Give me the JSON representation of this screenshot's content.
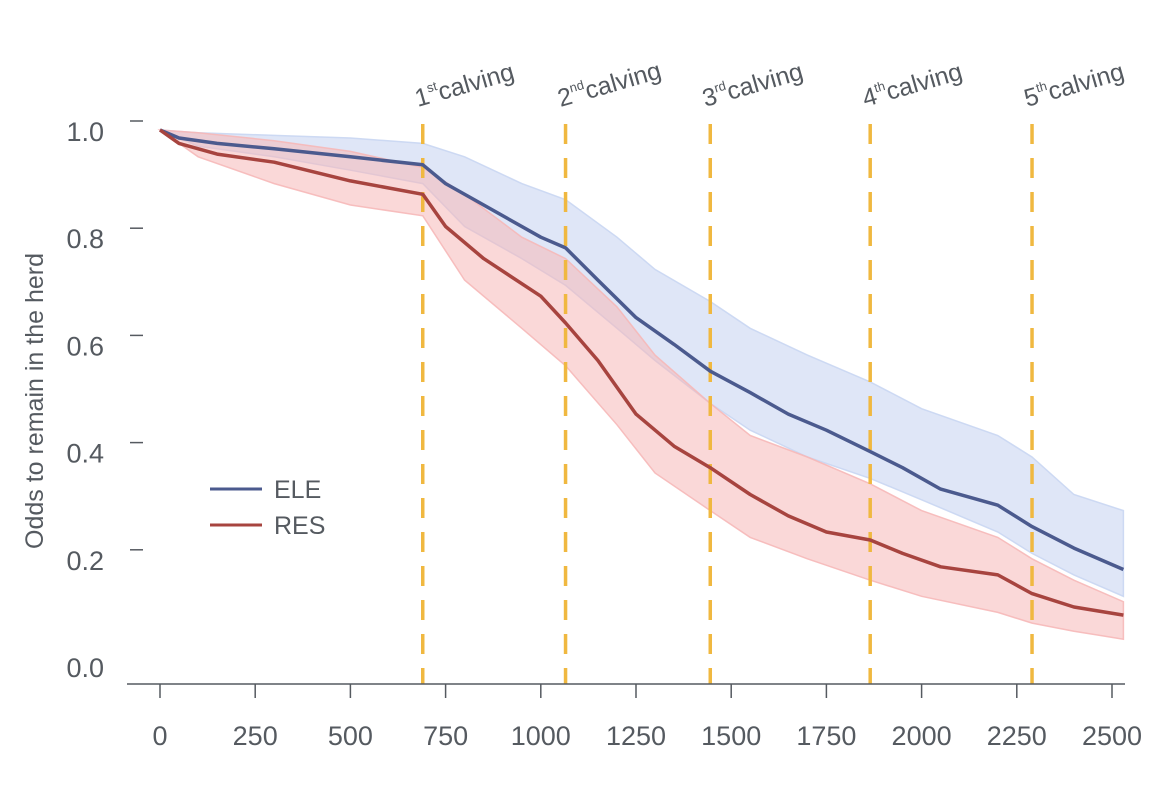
{
  "chart_data": {
    "type": "line",
    "title": "",
    "xlabel": "",
    "ylabel": "Odds to remain in the herd",
    "xlim": [
      -80,
      2530
    ],
    "ylim": [
      0.0,
      1.0
    ],
    "x_ticks": [
      0,
      250,
      500,
      750,
      1000,
      1250,
      1500,
      1750,
      2000,
      2250,
      2500
    ],
    "x_tick_labels": [
      "0",
      "250",
      "500",
      "750",
      "1000",
      "1250",
      "1500",
      "1750",
      "2000",
      "2250",
      "2500"
    ],
    "y_ticks": [
      0.0,
      0.2,
      0.4,
      0.6,
      0.8,
      1.0
    ],
    "y_tick_labels": [
      "0.0",
      "0.2",
      "0.4",
      "0.6",
      "0.8",
      "1.0"
    ],
    "grid": false,
    "legend_position": "left-middle",
    "calvings": [
      {
        "x": 690,
        "ordinal": "1",
        "suffix": "st",
        "text": "calving"
      },
      {
        "x": 1065,
        "ordinal": "2",
        "suffix": "nd",
        "text": "calving"
      },
      {
        "x": 1445,
        "ordinal": "3",
        "suffix": "rd",
        "text": "calving"
      },
      {
        "x": 1865,
        "ordinal": "4",
        "suffix": "th",
        "text": "calving"
      },
      {
        "x": 2290,
        "ordinal": "5",
        "suffix": "th",
        "text": "calving"
      }
    ],
    "series": [
      {
        "name": "ELE",
        "color": "#4b5a8e",
        "band_color": "#c9d6f2",
        "points": [
          [
            0,
            1.0
          ],
          [
            50,
            0.985
          ],
          [
            150,
            0.975
          ],
          [
            300,
            0.965
          ],
          [
            500,
            0.95
          ],
          [
            690,
            0.935
          ],
          [
            750,
            0.9
          ],
          [
            850,
            0.86
          ],
          [
            1000,
            0.8
          ],
          [
            1065,
            0.78
          ],
          [
            1150,
            0.72
          ],
          [
            1250,
            0.65
          ],
          [
            1350,
            0.6
          ],
          [
            1445,
            0.55
          ],
          [
            1550,
            0.51
          ],
          [
            1650,
            0.47
          ],
          [
            1750,
            0.44
          ],
          [
            1865,
            0.4
          ],
          [
            1950,
            0.37
          ],
          [
            2050,
            0.33
          ],
          [
            2200,
            0.3
          ],
          [
            2290,
            0.26
          ],
          [
            2400,
            0.22
          ],
          [
            2530,
            0.18
          ]
        ],
        "upper": [
          [
            0,
            1.0
          ],
          [
            100,
            0.995
          ],
          [
            300,
            0.99
          ],
          [
            500,
            0.985
          ],
          [
            690,
            0.975
          ],
          [
            800,
            0.95
          ],
          [
            950,
            0.9
          ],
          [
            1065,
            0.87
          ],
          [
            1200,
            0.8
          ],
          [
            1300,
            0.74
          ],
          [
            1445,
            0.68
          ],
          [
            1550,
            0.63
          ],
          [
            1700,
            0.58
          ],
          [
            1865,
            0.53
          ],
          [
            2000,
            0.48
          ],
          [
            2200,
            0.43
          ],
          [
            2290,
            0.39
          ],
          [
            2400,
            0.32
          ],
          [
            2530,
            0.29
          ]
        ],
        "lower": [
          [
            0,
            1.0
          ],
          [
            100,
            0.97
          ],
          [
            300,
            0.95
          ],
          [
            500,
            0.925
          ],
          [
            690,
            0.9
          ],
          [
            800,
            0.82
          ],
          [
            950,
            0.76
          ],
          [
            1065,
            0.71
          ],
          [
            1200,
            0.63
          ],
          [
            1300,
            0.57
          ],
          [
            1445,
            0.49
          ],
          [
            1550,
            0.44
          ],
          [
            1700,
            0.39
          ],
          [
            1865,
            0.35
          ],
          [
            2000,
            0.31
          ],
          [
            2200,
            0.25
          ],
          [
            2290,
            0.21
          ],
          [
            2400,
            0.17
          ],
          [
            2530,
            0.13
          ]
        ]
      },
      {
        "name": "RES",
        "color": "#a7443f",
        "band_color": "#f6b8b8",
        "points": [
          [
            0,
            1.0
          ],
          [
            50,
            0.975
          ],
          [
            150,
            0.955
          ],
          [
            300,
            0.94
          ],
          [
            500,
            0.905
          ],
          [
            690,
            0.88
          ],
          [
            750,
            0.82
          ],
          [
            850,
            0.76
          ],
          [
            1000,
            0.69
          ],
          [
            1065,
            0.64
          ],
          [
            1150,
            0.57
          ],
          [
            1250,
            0.47
          ],
          [
            1350,
            0.41
          ],
          [
            1445,
            0.37
          ],
          [
            1550,
            0.32
          ],
          [
            1650,
            0.28
          ],
          [
            1750,
            0.25
          ],
          [
            1865,
            0.235
          ],
          [
            1950,
            0.21
          ],
          [
            2050,
            0.185
          ],
          [
            2200,
            0.17
          ],
          [
            2290,
            0.135
          ],
          [
            2400,
            0.11
          ],
          [
            2530,
            0.095
          ]
        ],
        "upper": [
          [
            0,
            1.0
          ],
          [
            100,
            0.995
          ],
          [
            300,
            0.98
          ],
          [
            500,
            0.96
          ],
          [
            690,
            0.93
          ],
          [
            800,
            0.88
          ],
          [
            950,
            0.8
          ],
          [
            1065,
            0.76
          ],
          [
            1200,
            0.67
          ],
          [
            1300,
            0.58
          ],
          [
            1445,
            0.49
          ],
          [
            1550,
            0.43
          ],
          [
            1700,
            0.39
          ],
          [
            1865,
            0.34
          ],
          [
            2000,
            0.29
          ],
          [
            2200,
            0.24
          ],
          [
            2290,
            0.2
          ],
          [
            2400,
            0.16
          ],
          [
            2530,
            0.12
          ]
        ],
        "lower": [
          [
            0,
            1.0
          ],
          [
            100,
            0.95
          ],
          [
            300,
            0.9
          ],
          [
            500,
            0.86
          ],
          [
            690,
            0.84
          ],
          [
            800,
            0.72
          ],
          [
            950,
            0.63
          ],
          [
            1065,
            0.56
          ],
          [
            1200,
            0.45
          ],
          [
            1300,
            0.36
          ],
          [
            1445,
            0.29
          ],
          [
            1550,
            0.24
          ],
          [
            1700,
            0.2
          ],
          [
            1865,
            0.16
          ],
          [
            2000,
            0.13
          ],
          [
            2200,
            0.1
          ],
          [
            2290,
            0.08
          ],
          [
            2400,
            0.065
          ],
          [
            2530,
            0.05
          ]
        ]
      }
    ],
    "calving_line_color": "#f0b840",
    "axis_color": "#555a60"
  }
}
